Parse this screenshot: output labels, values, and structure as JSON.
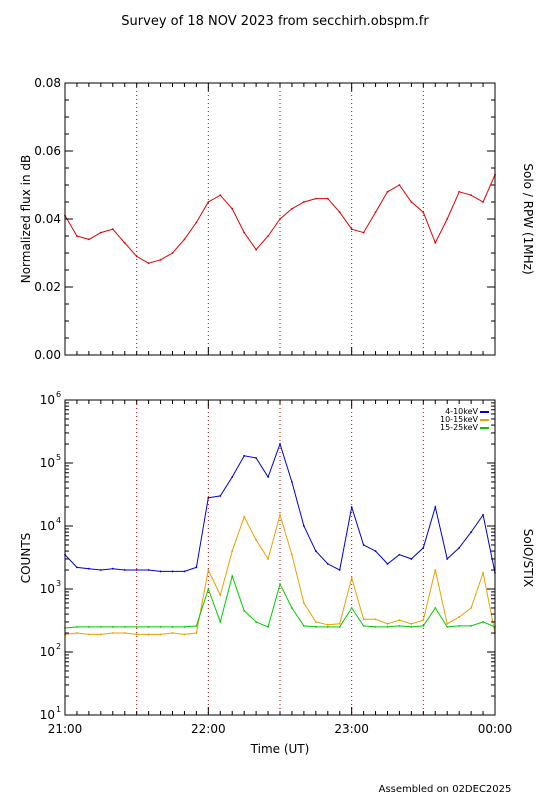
{
  "title": "Survey of 18 NOV 2023 from secchirh.obspm.fr",
  "footer": "Assembled on 02DEC2025",
  "chart_data": [
    {
      "type": "line",
      "ylabel": "Normalized flux in dB",
      "right_label": "Solo / RPW (1MHz)",
      "ylim": [
        0.0,
        0.08
      ],
      "yticks": [
        "0.00",
        "0.02",
        "0.04",
        "0.06",
        "0.08"
      ],
      "xlim": [
        "21:00",
        "00:00"
      ],
      "grid": "vertical dotted lines every 30 min",
      "series": [
        {
          "color": "#dd0000",
          "x": [
            "21:00",
            "21:05",
            "21:10",
            "21:15",
            "21:20",
            "21:25",
            "21:30",
            "21:35",
            "21:40",
            "21:45",
            "21:50",
            "21:55",
            "22:00",
            "22:05",
            "22:10",
            "22:15",
            "22:20",
            "22:25",
            "22:30",
            "22:35",
            "22:40",
            "22:45",
            "22:50",
            "22:55",
            "23:00",
            "23:05",
            "23:10",
            "23:15",
            "23:20",
            "23:25",
            "23:30",
            "23:35",
            "23:40",
            "23:45",
            "23:50",
            "23:55",
            "00:00"
          ],
          "values": [
            0.041,
            0.035,
            0.034,
            0.036,
            0.037,
            0.033,
            0.029,
            0.027,
            0.028,
            0.03,
            0.034,
            0.039,
            0.045,
            0.047,
            0.043,
            0.036,
            0.031,
            0.035,
            0.04,
            0.043,
            0.045,
            0.046,
            0.046,
            0.042,
            0.037,
            0.036,
            0.042,
            0.048,
            0.05,
            0.045,
            0.042,
            0.033,
            0.04,
            0.048,
            0.047,
            0.045,
            0.053
          ]
        }
      ]
    },
    {
      "type": "line",
      "ylabel": "COUNTS",
      "xlabel": "Time (UT)",
      "right_label": "SolO/STIX",
      "yscale": "log",
      "ylim": [
        10,
        1000000
      ],
      "yticks": [
        "10^1",
        "10^2",
        "10^3",
        "10^4",
        "10^5",
        "10^6"
      ],
      "xlim": [
        "21:00",
        "00:00"
      ],
      "xticks": [
        "21:00",
        "22:00",
        "23:00",
        "00:00"
      ],
      "legend": "top-right",
      "series": [
        {
          "name": "4-10keV",
          "color": "#0000cc",
          "x": [
            "21:00",
            "21:05",
            "21:10",
            "21:15",
            "21:20",
            "21:25",
            "21:30",
            "21:35",
            "21:40",
            "21:45",
            "21:50",
            "21:55",
            "22:00",
            "22:05",
            "22:10",
            "22:15",
            "22:20",
            "22:25",
            "22:30",
            "22:35",
            "22:40",
            "22:45",
            "22:50",
            "22:55",
            "23:00",
            "23:05",
            "23:10",
            "23:15",
            "23:20",
            "23:25",
            "23:30",
            "23:35",
            "23:40",
            "23:45",
            "23:50",
            "23:55",
            "00:00"
          ],
          "values": [
            3500,
            2200,
            2100,
            2000,
            2100,
            2000,
            2000,
            2000,
            1900,
            1900,
            1900,
            2200,
            28000,
            30000,
            60000,
            130000,
            120000,
            60000,
            200000,
            50000,
            10000,
            4000,
            2500,
            2000,
            20000,
            5000,
            4000,
            2500,
            3500,
            3000,
            4500,
            20000,
            3000,
            4500,
            8000,
            15000,
            1800
          ]
        },
        {
          "name": "10-15keV",
          "color": "#e8a000",
          "x": [
            "21:00",
            "21:05",
            "21:10",
            "21:15",
            "21:20",
            "21:25",
            "21:30",
            "21:35",
            "21:40",
            "21:45",
            "21:50",
            "21:55",
            "22:00",
            "22:05",
            "22:10",
            "22:15",
            "22:20",
            "22:25",
            "22:30",
            "22:35",
            "22:40",
            "22:45",
            "22:50",
            "22:55",
            "23:00",
            "23:05",
            "23:10",
            "23:15",
            "23:20",
            "23:25",
            "23:30",
            "23:35",
            "23:40",
            "23:45",
            "23:50",
            "23:55",
            "00:00"
          ],
          "values": [
            190,
            200,
            190,
            190,
            200,
            200,
            190,
            190,
            190,
            200,
            190,
            200,
            2000,
            800,
            4000,
            14000,
            6000,
            3000,
            15000,
            3500,
            600,
            300,
            270,
            280,
            1500,
            330,
            330,
            280,
            320,
            280,
            320,
            2000,
            280,
            360,
            500,
            1800,
            200
          ]
        },
        {
          "name": "15-25keV",
          "color": "#00cc00",
          "x": [
            "21:00",
            "21:05",
            "21:10",
            "21:15",
            "21:20",
            "21:25",
            "21:30",
            "21:35",
            "21:40",
            "21:45",
            "21:50",
            "21:55",
            "22:00",
            "22:05",
            "22:10",
            "22:15",
            "22:20",
            "22:25",
            "22:30",
            "22:35",
            "22:40",
            "22:45",
            "22:50",
            "22:55",
            "23:00",
            "23:05",
            "23:10",
            "23:15",
            "23:20",
            "23:25",
            "23:30",
            "23:35",
            "23:40",
            "23:45",
            "23:50",
            "23:55",
            "00:00"
          ],
          "values": [
            240,
            250,
            250,
            250,
            250,
            250,
            250,
            250,
            250,
            250,
            250,
            260,
            1000,
            300,
            1600,
            450,
            300,
            250,
            1200,
            500,
            260,
            250,
            250,
            250,
            500,
            260,
            250,
            250,
            260,
            250,
            260,
            500,
            250,
            260,
            260,
            300,
            250
          ]
        }
      ]
    }
  ]
}
